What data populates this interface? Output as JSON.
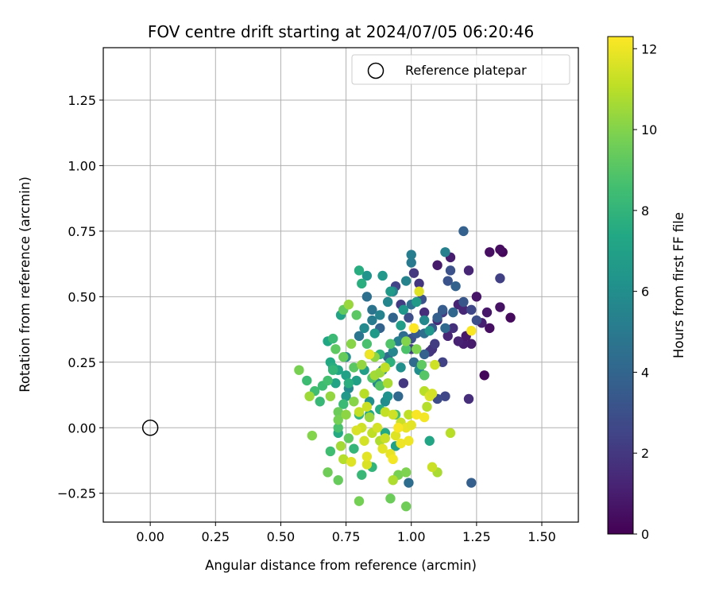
{
  "chart_data": {
    "type": "scatter",
    "title": "FOV centre drift starting at 2024/07/05 06:20:46",
    "xlabel": "Angular distance from reference (arcmin)",
    "ylabel": "Rotation from reference (arcmin)",
    "xlim": [
      -0.18,
      1.64
    ],
    "ylim": [
      -0.36,
      1.45
    ],
    "xticks": [
      0.0,
      0.25,
      0.5,
      0.75,
      1.0,
      1.25,
      1.5
    ],
    "xtick_labels": [
      "0.00",
      "0.25",
      "0.50",
      "0.75",
      "1.00",
      "1.25",
      "1.50"
    ],
    "yticks": [
      -0.25,
      0.0,
      0.25,
      0.5,
      0.75,
      1.0,
      1.25
    ],
    "ytick_labels": [
      "−0.25",
      "0.00",
      "0.25",
      "0.50",
      "0.75",
      "1.00",
      "1.25"
    ],
    "grid": true,
    "legend": {
      "placement": "top-right",
      "entries": [
        {
          "label": "Reference platepar",
          "marker": "open-circle"
        }
      ]
    },
    "colorbar": {
      "label": "Hours from first FF file",
      "min": 0,
      "max": 12.3,
      "ticks": [
        0,
        2,
        4,
        6,
        8,
        10,
        12
      ],
      "tick_labels": [
        "0",
        "2",
        "4",
        "6",
        "8",
        "10",
        "12"
      ],
      "colormap": "viridis"
    },
    "reference_point": {
      "x": 0.0,
      "y": 0.0
    },
    "series": [
      {
        "points": [
          [
            1.28,
            0.2,
            0.2
          ],
          [
            1.38,
            0.42,
            0.3
          ],
          [
            1.35,
            0.67,
            0.2
          ],
          [
            1.34,
            0.68,
            0.4
          ],
          [
            1.3,
            0.67,
            0.5
          ],
          [
            1.34,
            0.46,
            0.6
          ],
          [
            1.3,
            0.38,
            0.5
          ],
          [
            1.29,
            0.44,
            0.8
          ],
          [
            1.25,
            0.5,
            0.7
          ],
          [
            1.23,
            0.32,
            0.9
          ],
          [
            1.2,
            0.32,
            1.0
          ],
          [
            1.21,
            0.35,
            0.8
          ],
          [
            1.15,
            0.65,
            1.0
          ],
          [
            1.1,
            0.62,
            0.9
          ],
          [
            1.22,
            0.6,
            1.3
          ],
          [
            1.18,
            0.47,
            1.2
          ],
          [
            1.2,
            0.45,
            1.4
          ],
          [
            1.27,
            0.4,
            1.1
          ],
          [
            1.22,
            0.11,
            1.6
          ],
          [
            1.16,
            0.38,
            1.7
          ],
          [
            1.08,
            0.3,
            1.8
          ],
          [
            1.05,
            0.44,
            1.6
          ],
          [
            1.03,
            0.55,
            1.9
          ],
          [
            1.01,
            0.59,
            2.0
          ],
          [
            1.12,
            0.44,
            2.1
          ],
          [
            1.1,
            0.41,
            1.5
          ],
          [
            1.14,
            0.35,
            1.3
          ],
          [
            1.18,
            0.33,
            1.2
          ],
          [
            1.09,
            0.32,
            2.2
          ],
          [
            1.07,
            0.29,
            1.9
          ],
          [
            1.12,
            0.25,
            2.4
          ],
          [
            1.0,
            0.3,
            2.3
          ],
          [
            0.97,
            0.17,
            2.0
          ],
          [
            0.94,
            0.54,
            2.5
          ],
          [
            0.96,
            0.47,
            2.2
          ],
          [
            1.13,
            0.12,
            2.6
          ],
          [
            1.1,
            0.11,
            2.8
          ],
          [
            1.05,
            0.2,
            2.7
          ],
          [
            1.34,
            0.57,
            2.3
          ],
          [
            1.23,
            0.45,
            2.6
          ],
          [
            1.25,
            0.41,
            2.9
          ],
          [
            1.0,
            0.34,
            3.0
          ],
          [
            1.04,
            0.49,
            3.1
          ],
          [
            0.99,
            0.42,
            2.9
          ],
          [
            1.14,
            0.56,
            3.2
          ],
          [
            1.2,
            0.48,
            3.3
          ],
          [
            1.15,
            0.6,
            3.1
          ],
          [
            1.08,
            0.38,
            3.4
          ],
          [
            1.12,
            0.45,
            3.6
          ],
          [
            1.02,
            0.36,
            3.5
          ],
          [
            1.2,
            0.75,
            3.8
          ],
          [
            1.23,
            -0.21,
            3.7
          ],
          [
            1.17,
            0.54,
            3.9
          ],
          [
            1.1,
            0.42,
            3.7
          ],
          [
            1.05,
            0.28,
            3.8
          ],
          [
            0.93,
            0.42,
            4.0
          ],
          [
            0.88,
            0.38,
            3.9
          ],
          [
            1.16,
            0.44,
            4.1
          ],
          [
            1.13,
            0.38,
            4.2
          ],
          [
            1.01,
            0.25,
            4.3
          ],
          [
            0.99,
            -0.21,
            4.4
          ],
          [
            0.95,
            0.12,
            4.2
          ],
          [
            1.05,
            0.36,
            4.5
          ],
          [
            0.97,
            0.35,
            4.4
          ],
          [
            1.0,
            0.47,
            4.6
          ],
          [
            0.91,
            0.27,
            4.3
          ],
          [
            0.83,
            0.5,
            4.5
          ],
          [
            0.85,
            0.45,
            4.7
          ],
          [
            0.8,
            0.35,
            4.8
          ],
          [
            1.0,
            0.63,
            5.0
          ],
          [
            1.0,
            0.66,
            5.2
          ],
          [
            1.13,
            0.67,
            5.3
          ],
          [
            0.98,
            0.56,
            5.4
          ],
          [
            0.93,
            0.52,
            5.5
          ],
          [
            0.91,
            0.48,
            5.6
          ],
          [
            0.85,
            0.41,
            5.1
          ],
          [
            0.88,
            0.43,
            5.4
          ],
          [
            0.95,
            0.33,
            5.2
          ],
          [
            1.05,
            0.41,
            5.7
          ],
          [
            0.93,
            0.29,
            5.6
          ],
          [
            0.89,
            0.22,
            5.5
          ],
          [
            0.82,
            0.38,
            5.8
          ],
          [
            0.75,
            0.27,
            5.9
          ],
          [
            0.76,
            0.15,
            5.8
          ],
          [
            0.87,
            0.17,
            5.7
          ],
          [
            0.9,
            0.1,
            5.9
          ],
          [
            1.03,
            0.22,
            6.0
          ],
          [
            0.96,
            0.23,
            6.1
          ],
          [
            0.91,
            0.12,
            6.2
          ],
          [
            0.84,
            0.1,
            6.1
          ],
          [
            0.83,
            0.58,
            6.3
          ],
          [
            0.89,
            0.58,
            6.5
          ],
          [
            0.92,
            0.52,
            6.6
          ],
          [
            0.97,
            0.45,
            6.4
          ],
          [
            1.02,
            0.48,
            6.7
          ],
          [
            0.75,
            0.12,
            6.5
          ],
          [
            1.07,
            0.37,
            6.4
          ],
          [
            0.82,
            0.22,
            6.8
          ],
          [
            0.79,
            0.18,
            6.9
          ],
          [
            0.86,
            0.36,
            6.6
          ],
          [
            0.96,
            0.39,
            6.8
          ],
          [
            0.75,
            0.2,
            7.0
          ],
          [
            0.73,
            0.43,
            7.1
          ],
          [
            0.72,
            0.22,
            7.2
          ],
          [
            0.71,
            0.17,
            7.1
          ],
          [
            0.68,
            0.33,
            7.3
          ],
          [
            0.69,
            0.25,
            7.4
          ],
          [
            1.07,
            -0.05,
            7.2
          ],
          [
            0.94,
            -0.07,
            7.0
          ],
          [
            0.84,
            0.05,
            7.3
          ],
          [
            0.88,
            0.07,
            7.5
          ],
          [
            0.9,
            -0.02,
            7.4
          ],
          [
            0.7,
            0.23,
            7.6
          ],
          [
            0.72,
            -0.02,
            7.5
          ],
          [
            0.81,
            0.55,
            7.7
          ],
          [
            0.8,
            0.6,
            7.6
          ],
          [
            0.84,
            0.28,
            7.8
          ],
          [
            0.88,
            0.28,
            7.9
          ],
          [
            0.76,
            0.17,
            7.7
          ],
          [
            0.92,
            0.25,
            7.8
          ],
          [
            0.8,
            0.05,
            8.0
          ],
          [
            0.78,
            -0.08,
            8.1
          ],
          [
            0.85,
            -0.15,
            8.0
          ],
          [
            0.81,
            -0.18,
            8.2
          ],
          [
            0.7,
            0.34,
            8.3
          ],
          [
            0.7,
            0.22,
            8.1
          ],
          [
            0.66,
            0.16,
            8.4
          ],
          [
            0.65,
            0.1,
            8.2
          ],
          [
            0.63,
            0.14,
            8.5
          ],
          [
            0.6,
            0.18,
            8.4
          ],
          [
            0.68,
            0.18,
            8.6
          ],
          [
            0.74,
            0.09,
            8.3
          ],
          [
            0.72,
            0.0,
            8.7
          ],
          [
            0.69,
            -0.09,
            8.5
          ],
          [
            0.94,
            0.05,
            8.6
          ],
          [
            0.98,
            0.3,
            8.8
          ],
          [
            0.92,
            0.32,
            8.9
          ],
          [
            0.83,
            0.32,
            8.7
          ],
          [
            0.88,
            0.16,
            9.0
          ],
          [
            0.85,
            0.19,
            8.9
          ],
          [
            0.78,
            0.23,
            9.1
          ],
          [
            1.05,
            0.2,
            9.0
          ],
          [
            1.04,
            0.24,
            9.2
          ],
          [
            0.74,
            0.45,
            9.3
          ],
          [
            0.79,
            0.43,
            9.1
          ],
          [
            0.74,
            0.27,
            9.4
          ],
          [
            0.71,
            0.3,
            9.2
          ],
          [
            0.72,
            0.06,
            9.5
          ],
          [
            0.76,
            -0.04,
            9.3
          ],
          [
            0.68,
            -0.17,
            9.6
          ],
          [
            0.72,
            -0.2,
            9.4
          ],
          [
            0.8,
            -0.28,
            9.7
          ],
          [
            0.92,
            -0.27,
            9.5
          ],
          [
            0.95,
            -0.18,
            9.8
          ],
          [
            0.98,
            -0.3,
            9.6
          ],
          [
            0.98,
            -0.17,
            9.9
          ],
          [
            0.62,
            -0.03,
            10.0
          ],
          [
            0.57,
            0.22,
            9.8
          ],
          [
            0.72,
            0.03,
            9.7
          ],
          [
            0.78,
            0.1,
            10.1
          ],
          [
            1.02,
            0.3,
            9.9
          ],
          [
            0.98,
            0.33,
            10.0
          ],
          [
            0.86,
            0.27,
            10.2
          ],
          [
            0.81,
            0.24,
            10.3
          ],
          [
            0.77,
            0.32,
            10.1
          ],
          [
            0.76,
            0.47,
            10.4
          ],
          [
            0.75,
            0.05,
            10.2
          ],
          [
            0.61,
            0.12,
            10.5
          ],
          [
            0.69,
            0.12,
            10.3
          ],
          [
            0.86,
            0.2,
            10.6
          ],
          [
            0.88,
            0.21,
            10.5
          ],
          [
            0.91,
            0.17,
            10.7
          ],
          [
            0.84,
            0.04,
            10.4
          ],
          [
            0.88,
            -0.05,
            10.8
          ],
          [
            0.73,
            -0.07,
            10.6
          ],
          [
            0.74,
            -0.12,
            10.9
          ],
          [
            1.1,
            -0.17,
            10.7
          ],
          [
            0.93,
            -0.2,
            10.8
          ],
          [
            1.05,
            0.14,
            11.0
          ],
          [
            1.06,
            0.08,
            10.9
          ],
          [
            0.99,
            0.05,
            11.1
          ],
          [
            0.82,
            0.13,
            11.0
          ],
          [
            0.8,
            0.06,
            11.2
          ],
          [
            0.83,
            0.08,
            11.3
          ],
          [
            0.85,
            -0.02,
            11.1
          ],
          [
            0.9,
            0.06,
            11.2
          ],
          [
            0.93,
            0.05,
            11.4
          ],
          [
            0.96,
            0.02,
            11.3
          ],
          [
            0.87,
            0.0,
            11.5
          ],
          [
            0.81,
            0.0,
            11.4
          ],
          [
            0.79,
            -0.01,
            11.6
          ],
          [
            0.82,
            -0.05,
            11.5
          ],
          [
            0.77,
            -0.13,
            11.7
          ],
          [
            0.83,
            -0.14,
            11.6
          ],
          [
            0.89,
            -0.08,
            11.8
          ],
          [
            0.94,
            -0.03,
            11.7
          ],
          [
            0.98,
            0.0,
            11.9
          ],
          [
            1.0,
            0.01,
            11.8
          ],
          [
            0.96,
            -0.06,
            12.0
          ],
          [
            0.92,
            -0.1,
            11.9
          ],
          [
            0.93,
            -0.12,
            12.1
          ],
          [
            0.99,
            -0.05,
            12.0
          ],
          [
            1.02,
            0.05,
            12.2
          ],
          [
            1.05,
            0.04,
            12.1
          ],
          [
            1.01,
            0.38,
            12.3
          ],
          [
            1.23,
            0.37,
            12.2
          ],
          [
            1.15,
            -0.02,
            11.0
          ],
          [
            1.08,
            -0.15,
            11.3
          ],
          [
            1.09,
            0.24,
            11.4
          ],
          [
            1.07,
            0.12,
            11.6
          ],
          [
            1.08,
            0.13,
            11.5
          ],
          [
            1.03,
            0.52,
            11.7
          ],
          [
            0.84,
            0.28,
            12.0
          ],
          [
            0.95,
            0.0,
            12.2
          ],
          [
            0.9,
            0.23,
            11.1
          ],
          [
            0.83,
            -0.11,
            11.8
          ],
          [
            0.9,
            -0.04,
            11.3
          ]
        ]
      }
    ]
  }
}
